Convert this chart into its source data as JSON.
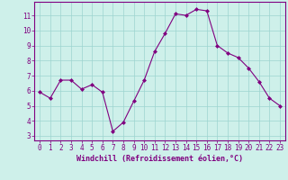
{
  "x": [
    0,
    1,
    2,
    3,
    4,
    5,
    6,
    7,
    8,
    9,
    10,
    11,
    12,
    13,
    14,
    15,
    16,
    17,
    18,
    19,
    20,
    21,
    22,
    23
  ],
  "y": [
    5.9,
    5.5,
    6.7,
    6.7,
    6.1,
    6.4,
    5.9,
    3.3,
    3.9,
    5.3,
    6.7,
    8.6,
    9.8,
    11.1,
    11.0,
    11.4,
    11.3,
    9.0,
    8.5,
    8.2,
    7.5,
    6.6,
    5.5,
    5.0
  ],
  "line_color": "#800080",
  "marker": "D",
  "marker_size": 2.0,
  "bg_color": "#cef0ea",
  "grid_color": "#9dd4cf",
  "xlabel": "Windchill (Refroidissement éolien,°C)",
  "xlim": [
    -0.5,
    23.5
  ],
  "ylim": [
    2.7,
    11.9
  ],
  "yticks": [
    3,
    4,
    5,
    6,
    7,
    8,
    9,
    10,
    11
  ],
  "xticks": [
    0,
    1,
    2,
    3,
    4,
    5,
    6,
    7,
    8,
    9,
    10,
    11,
    12,
    13,
    14,
    15,
    16,
    17,
    18,
    19,
    20,
    21,
    22,
    23
  ],
  "tick_color": "#800080",
  "label_color": "#800080",
  "spine_color": "#800080",
  "tick_fontsize": 5.5,
  "xlabel_fontsize": 6.0
}
